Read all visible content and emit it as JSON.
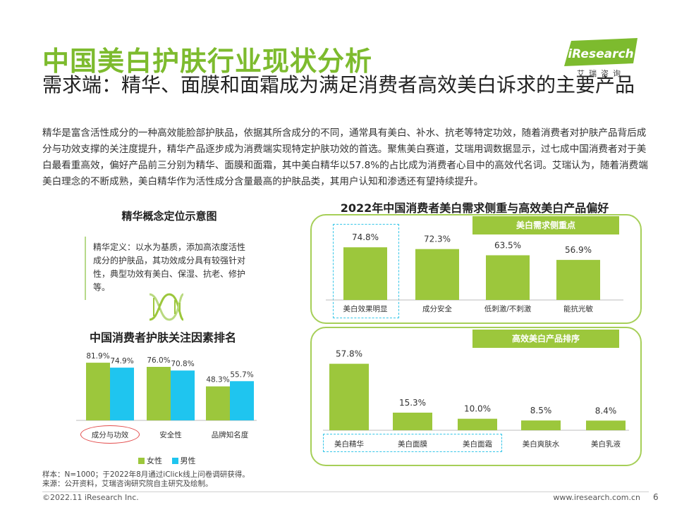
{
  "header": {
    "title": "中国美白护肤行业现状分析",
    "subtitle": "需求端：精华、面膜和面霜成为满足消费者高效美白诉求的主要产品",
    "logo_text": "iResearch",
    "logo_sub": "艾瑞咨询"
  },
  "intro": "精华是富含活性成分的一种高效能脸部护肤品，依据其所含成分的不同，通常具有美白、补水、抗老等特定功效，随着消费者对护肤产品背后成分与功效支撑的关注度提升，精华产品逐步成为消费端实现特定护肤功效的首选。聚焦美白赛道，艾瑞用调数据显示，过七成中国消费者对于美白最看重高效，偏好产品前三分别为精华、面膜和面霜，其中美白精华以57.8%的占比成为消费者心目中的高效代名词。艾瑞认为，随着消费端美白理念的不断成熟，美白精华作为活性成分含量最高的护肤品类，其用户认知和渗透还有望持续提升。",
  "concept": {
    "title": "精华概念定位示意图",
    "text": "精华定义：以水为基质，添加高浓度活性成分的护肤品，其功效成分具有较强针对性，典型功效有美白、保湿、抗老、修护等。",
    "icon": "dna-icon"
  },
  "notes": {
    "sample": "样本：N=1000；于2022年8月通过iClick线上问卷调研获得。",
    "source": "来源：公开资料，艾瑞咨询研究院自主研究及绘制。"
  },
  "footer": {
    "copyright": "©2022.11 iResearch Inc.",
    "site": "www.iresearch.com.cn",
    "page": "6"
  },
  "colors": {
    "green": "#9cc73c",
    "cyan": "#1fc5ef",
    "title_green": "#7dbb2e",
    "highlight_red": "#e34b4b",
    "dash_cyan": "#35c6e8"
  },
  "chart_data": [
    {
      "id": "factors",
      "type": "bar",
      "title": "中国消费者护肤关注因素排名",
      "categories": [
        "成分与功效",
        "安全性",
        "品牌知名度"
      ],
      "series": [
        {
          "name": "女性",
          "values": [
            81.9,
            76.0,
            48.3
          ],
          "labels": [
            "81.9%",
            "76.0%",
            "48.3%"
          ]
        },
        {
          "name": "男性",
          "values": [
            74.9,
            70.8,
            55.7
          ],
          "labels": [
            "74.9%",
            "70.8%",
            "55.7%"
          ]
        }
      ],
      "ylim": [
        0,
        100
      ],
      "legend": "bottom",
      "highlight": "成分与功效"
    },
    {
      "id": "demand",
      "type": "bar",
      "title": "2022年中国消费者美白需求侧重与高效美白产品偏好",
      "tag": "美白需求侧重点",
      "categories": [
        "美白效果明显",
        "成分安全",
        "低刺激/不刺激",
        "能抗光敏"
      ],
      "values": [
        74.8,
        72.3,
        63.5,
        56.9
      ],
      "labels": [
        "74.8%",
        "72.3%",
        "63.5%",
        "56.9%"
      ],
      "ylim": [
        0,
        100
      ],
      "highlight": "美白效果明显"
    },
    {
      "id": "products",
      "type": "bar",
      "tag": "高效美白产品排序",
      "categories": [
        "美白精华",
        "美白面膜",
        "美白面霜",
        "美白爽肤水",
        "美白乳液"
      ],
      "values": [
        57.8,
        15.3,
        10.0,
        8.5,
        8.4
      ],
      "labels": [
        "57.8%",
        "15.3%",
        "10.0%",
        "8.5%",
        "8.4%"
      ],
      "ylim": [
        0,
        60
      ],
      "highlight": [
        "美白精华",
        "美白面膜",
        "美白面霜"
      ]
    }
  ]
}
